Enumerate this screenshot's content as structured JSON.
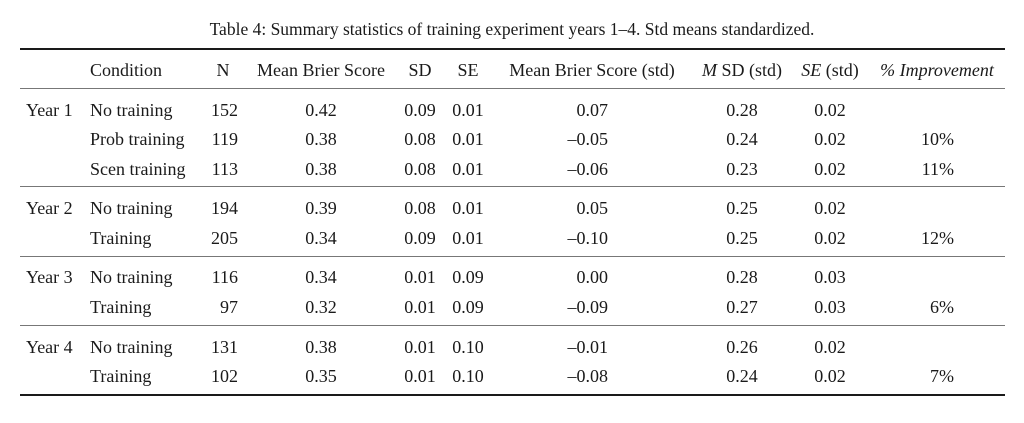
{
  "caption": "Table 4: Summary statistics of training experiment years 1–4. Std means standardized.",
  "headers": {
    "condition": "Condition",
    "n": "N",
    "mean_brier": "Mean Brier Score",
    "sd": "SD",
    "se": "SE",
    "mean_brier_std": "Mean Brier Score (std)",
    "m_sd_std_m": "M",
    "m_sd_std_rest": " SD (std)",
    "se_std_se": "SE",
    "se_std_rest": " (std)",
    "improvement": "% Improvement"
  },
  "rows": [
    {
      "year": "Year 1",
      "condition": "No training",
      "n": "152",
      "mean": "0.42",
      "sd": "0.09",
      "se": "0.01",
      "mean_std": "0.07",
      "msd_std": "0.28",
      "se_std": "0.02",
      "improvement": ""
    },
    {
      "year": "",
      "condition": "Prob training",
      "n": "119",
      "mean": "0.38",
      "sd": "0.08",
      "se": "0.01",
      "mean_std": "–0.05",
      "msd_std": "0.24",
      "se_std": "0.02",
      "improvement": "10%"
    },
    {
      "year": "",
      "condition": "Scen training",
      "n": "113",
      "mean": "0.38",
      "sd": "0.08",
      "se": "0.01",
      "mean_std": "–0.06",
      "msd_std": "0.23",
      "se_std": "0.02",
      "improvement": "11%"
    },
    {
      "year": "Year 2",
      "condition": "No training",
      "n": "194",
      "mean": "0.39",
      "sd": "0.08",
      "se": "0.01",
      "mean_std": "0.05",
      "msd_std": "0.25",
      "se_std": "0.02",
      "improvement": ""
    },
    {
      "year": "",
      "condition": "Training",
      "n": "205",
      "mean": "0.34",
      "sd": "0.09",
      "se": "0.01",
      "mean_std": "–0.10",
      "msd_std": "0.25",
      "se_std": "0.02",
      "improvement": "12%"
    },
    {
      "year": "Year 3",
      "condition": "No training",
      "n": "116",
      "mean": "0.34",
      "sd": "0.01",
      "se": "0.09",
      "mean_std": "0.00",
      "msd_std": "0.28",
      "se_std": "0.03",
      "improvement": ""
    },
    {
      "year": "",
      "condition": "Training",
      "n": "97",
      "mean": "0.32",
      "sd": "0.01",
      "se": "0.09",
      "mean_std": "–0.09",
      "msd_std": "0.27",
      "se_std": "0.03",
      "improvement": "6%"
    },
    {
      "year": "Year 4",
      "condition": "No training",
      "n": "131",
      "mean": "0.38",
      "sd": "0.01",
      "se": "0.10",
      "mean_std": "–0.01",
      "msd_std": "0.26",
      "se_std": "0.02",
      "improvement": ""
    },
    {
      "year": "",
      "condition": "Training",
      "n": "102",
      "mean": "0.35",
      "sd": "0.01",
      "se": "0.10",
      "mean_std": "–0.08",
      "msd_std": "0.24",
      "se_std": "0.02",
      "improvement": "7%"
    }
  ]
}
